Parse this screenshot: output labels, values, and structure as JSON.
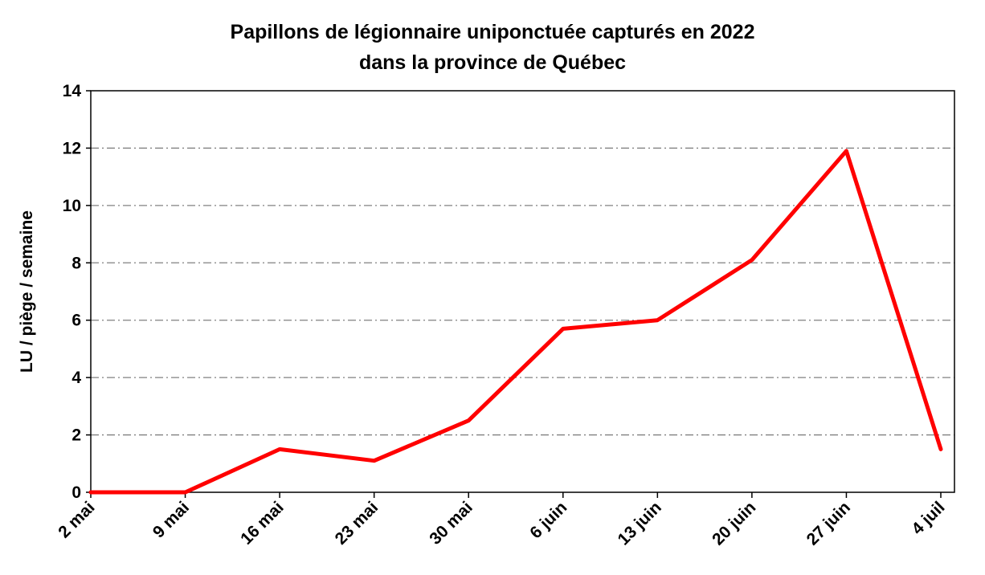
{
  "chart_data": {
    "type": "line",
    "title": [
      "Papillons de légionnaire uniponctuée capturés en 2022",
      "dans la province de Québec"
    ],
    "xlabel": "",
    "ylabel": "LU / piège / semaine",
    "categories": [
      "2 mai",
      "9 mai",
      "16 mai",
      "23 mai",
      "30 mai",
      "6 juin",
      "13 juin",
      "20 juin",
      "27 juin",
      "4 juil"
    ],
    "series": [
      {
        "values": [
          0,
          0,
          1.5,
          1.1,
          2.5,
          5.7,
          6.0,
          8.1,
          11.9,
          1.5
        ],
        "color": "#ff0000"
      }
    ],
    "ylim": [
      0,
      14
    ],
    "yticks": [
      "0",
      "2",
      "4",
      "6",
      "8",
      "10",
      "12",
      "14"
    ],
    "grid": true,
    "grid_style": "dash-dot horizontal",
    "legend": "none"
  }
}
